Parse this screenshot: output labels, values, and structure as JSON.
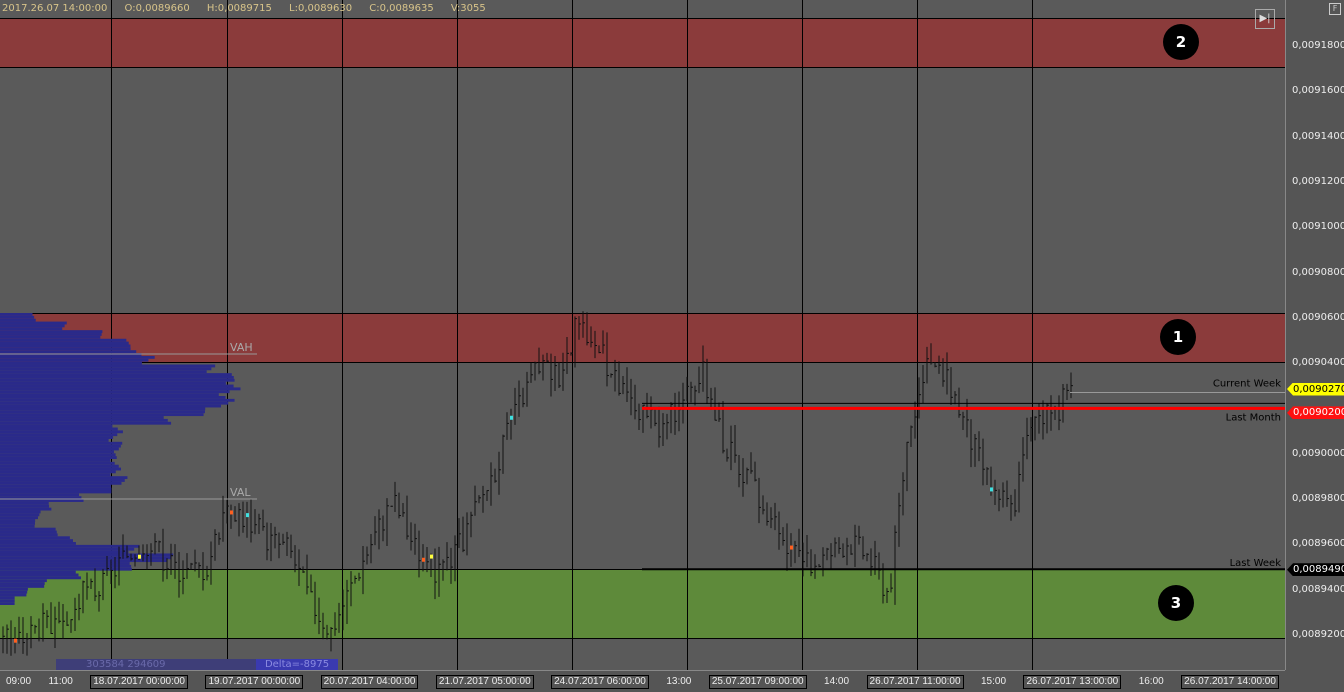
{
  "header": {
    "datetime": "2017.26.07 14:00:00",
    "open": "O:0,0089660",
    "high": "H:0,0089715",
    "low": "L:0,0089630",
    "close": "C:0,0089635",
    "volume": "V:3055"
  },
  "colors": {
    "resistance_zone": "#8b3b3b",
    "support_zone": "#5e8a3a",
    "profile": "#2a2a8a",
    "current_week": "#ffff00",
    "last_month": "#ff0000",
    "last_week": "#000000"
  },
  "zones": [
    {
      "label": "2",
      "from": 0.009171,
      "to": 0.009194
    },
    {
      "label": "1",
      "from": 0.009041,
      "to": 0.009062
    },
    {
      "label": "3",
      "from": 0.008919,
      "to": 0.008949
    }
  ],
  "profile_levels": {
    "vah_label": "VAH",
    "vah": 0.009044,
    "val_label": "VAL",
    "val": 0.00898
  },
  "profile_footer": {
    "volumes": "303584  294609",
    "delta": "Delta=-8975"
  },
  "levels": [
    {
      "label": "Current Week",
      "price": 0.009027,
      "price_label": "0,0090270"
    },
    {
      "label": "Last Month",
      "price": 0.00902,
      "price_label": "0,0090200"
    },
    {
      "label": "Last Week",
      "price": 0.008949,
      "price_label": "0,0089490"
    }
  ],
  "price_axis": [
    "0,0091800",
    "0,0091600",
    "0,0091400",
    "0,0091200",
    "0,0091000",
    "0,0090800",
    "0,0090600",
    "0,0090400",
    "0,0090000",
    "0,0089800",
    "0,0089600",
    "0,0089400",
    "0,0089200"
  ],
  "time_ticks": [
    "09:00",
    "11:00",
    "13:00",
    "14:00",
    "15:00",
    "16:00"
  ],
  "date_boxes": [
    "18.07.2017 00:00:00",
    "19.07.2017 00:00:00",
    "20.07.2017 04:00:00",
    "21.07.2017 05:00:00",
    "24.07.2017 06:00:00",
    "25.07.2017 09:00:00",
    "26.07.2017 11:00:00",
    "26.07.2017 13:00:00",
    "26.07.2017 14:00:00"
  ],
  "chart_data": {
    "type": "candlestick",
    "ylim": [
      0.00891,
      0.0092
    ],
    "closes": [
      0.008922,
      0.008918,
      0.008925,
      0.00892,
      0.008938,
      0.008942,
      0.008955,
      0.008962,
      0.008952,
      0.008948,
      0.00895,
      0.00898,
      0.00897,
      0.008962,
      0.008958,
      0.008935,
      0.008922,
      0.008942,
      0.008962,
      0.00898,
      0.00896,
      0.008948,
      0.008955,
      0.008975,
      0.008995,
      0.00902,
      0.00904,
      0.009035,
      0.009058,
      0.009045,
      0.009028,
      0.009018,
      0.00901,
      0.009025,
      0.009035,
      0.009005,
      0.008992,
      0.008975,
      0.008958,
      0.00895,
      0.008955,
      0.008962,
      0.008955,
      0.008938,
      0.009015,
      0.00904,
      0.00903,
      0.009005,
      0.008985,
      0.008975,
      0.00902,
      0.009018,
      0.00903
    ],
    "volume_profile": [
      0.15,
      0.25,
      0.35,
      0.45,
      0.55,
      0.62,
      0.75,
      0.8,
      0.88,
      1.0,
      0.85,
      0.7,
      0.6,
      0.5,
      0.45,
      0.42,
      0.4,
      0.45,
      0.5,
      0.45,
      0.38,
      0.3,
      0.22,
      0.15,
      0.12,
      0.2,
      0.3,
      0.55,
      0.6,
      0.45,
      0.3,
      0.2,
      0.1,
      0.05
    ]
  }
}
